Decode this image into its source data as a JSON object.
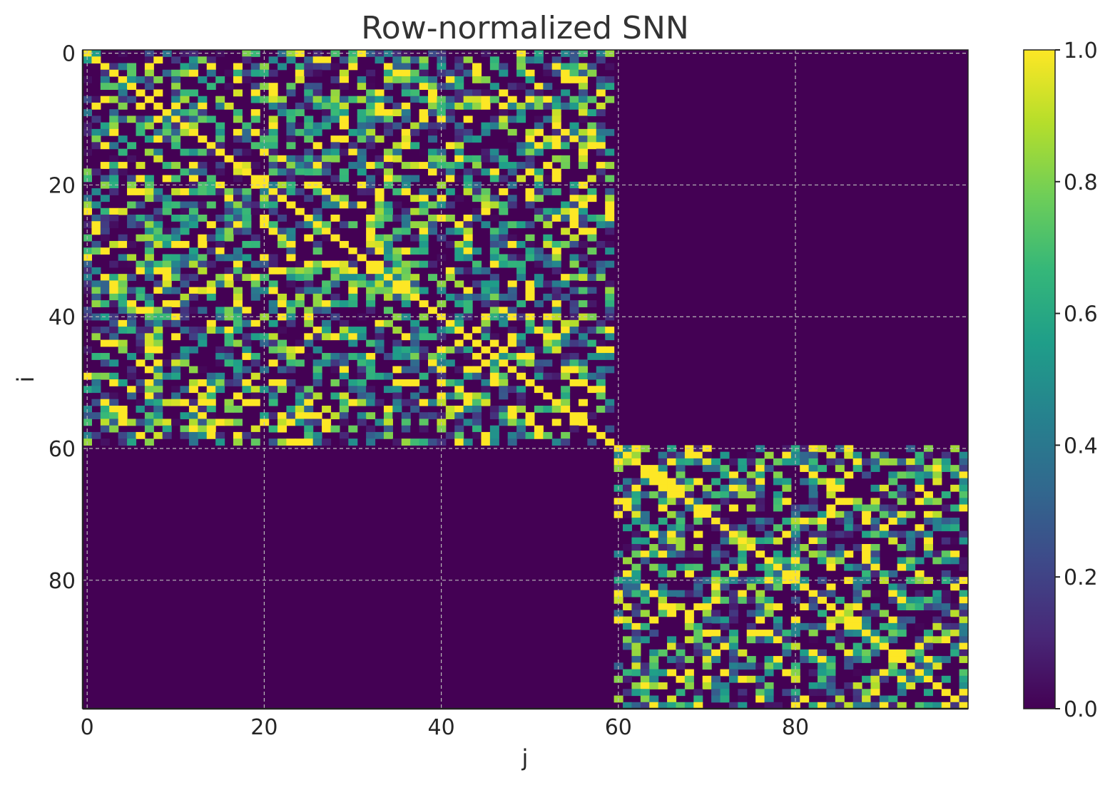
{
  "chart_data": {
    "type": "heatmap",
    "title": "Row-normalized SNN",
    "xlabel": "j",
    "ylabel": "i",
    "n": 100,
    "blocks": [
      {
        "start": 0,
        "end": 59
      },
      {
        "start": 60,
        "end": 99
      }
    ],
    "within_block_range": [
      0.0,
      1.0
    ],
    "between_block_value": 0.0,
    "diagonal_value": 1.0,
    "xticks": [
      0,
      20,
      40,
      60,
      80
    ],
    "yticks": [
      0,
      20,
      40,
      60,
      80
    ],
    "xtick_labels": [
      "0",
      "20",
      "40",
      "60",
      "80"
    ],
    "ytick_labels": [
      "0",
      "20",
      "40",
      "60",
      "80"
    ],
    "xlim": [
      -0.5,
      99.5
    ],
    "ylim": [
      99.5,
      -0.5
    ],
    "grid": true,
    "colorbar": {
      "colormap": "viridis",
      "range": [
        0.0,
        1.0
      ],
      "ticks": [
        0.0,
        0.2,
        0.4,
        0.6,
        0.8,
        1.0
      ],
      "tick_labels": [
        "0.0",
        "0.2",
        "0.4",
        "0.6",
        "0.8",
        "1.0"
      ]
    }
  },
  "colors": {
    "viridis": [
      "#440154",
      "#482878",
      "#3e4989",
      "#31688e",
      "#26828e",
      "#1f9e89",
      "#35b779",
      "#6ece58",
      "#b5de2b",
      "#fde725"
    ],
    "grid": "#bbbbbb",
    "axis": "#222222"
  }
}
